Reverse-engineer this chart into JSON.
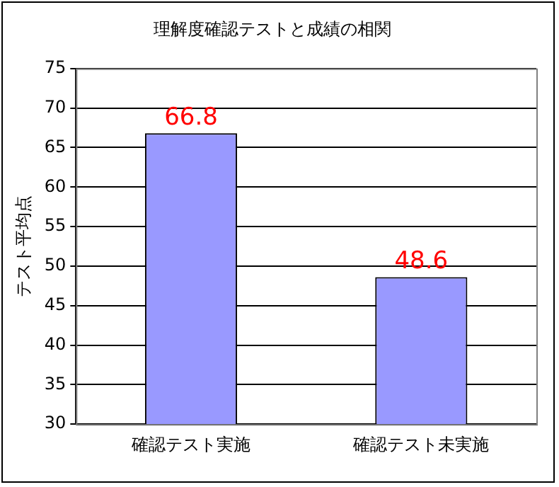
{
  "chart_data": {
    "type": "bar",
    "title": "理解度確認テストと成績の相関",
    "ylabel": "テスト平均点",
    "categories": [
      "確認テスト実施",
      "確認テスト未実施"
    ],
    "values": [
      66.8,
      48.6
    ],
    "color": "#9999ff",
    "ylim": [
      30,
      75
    ],
    "yticks": [
      30,
      35,
      40,
      45,
      50,
      55,
      60,
      65,
      70,
      75
    ],
    "grid": "y",
    "data_labels": true,
    "legend": false
  }
}
